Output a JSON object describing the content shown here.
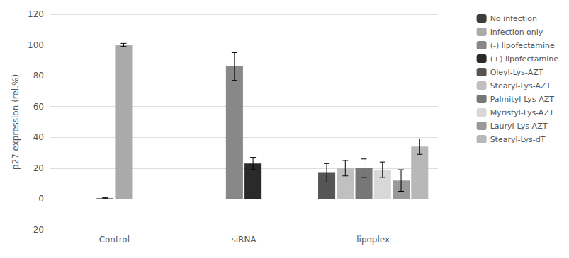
{
  "chart_data": {
    "type": "bar",
    "ylabel": "p27 expression (rel.%)",
    "categories": [
      "Control",
      "siRNA",
      "lipoplex"
    ],
    "series": [
      {
        "name": "No infection",
        "color": "#3c3c3c",
        "values": [
          0.5,
          null,
          null
        ],
        "errors": [
          0.3,
          null,
          null
        ]
      },
      {
        "name": "Infection only",
        "color": "#aaaaaa",
        "values": [
          100,
          null,
          null
        ],
        "errors": [
          1.0,
          null,
          null
        ]
      },
      {
        "name": "(-) lipofectamine",
        "color": "#888888",
        "values": [
          null,
          86,
          null
        ],
        "errors": [
          null,
          9,
          null
        ]
      },
      {
        "name": "(+) lipofectamine",
        "color": "#2a2a2a",
        "values": [
          null,
          23,
          null
        ],
        "errors": [
          null,
          4,
          null
        ]
      },
      {
        "name": "Oleyl-Lys-AZT",
        "color": "#555555",
        "values": [
          null,
          null,
          17
        ],
        "errors": [
          null,
          null,
          6
        ]
      },
      {
        "name": "Stearyl-Lys-AZT",
        "color": "#c0c0c0",
        "values": [
          null,
          null,
          20
        ],
        "errors": [
          null,
          null,
          5
        ]
      },
      {
        "name": "Palmityl-Lys-AZT",
        "color": "#777777",
        "values": [
          null,
          null,
          20
        ],
        "errors": [
          null,
          null,
          6
        ]
      },
      {
        "name": "Myristyl-Lys-AZT",
        "color": "#d8d8d8",
        "values": [
          null,
          null,
          19
        ],
        "errors": [
          null,
          null,
          5
        ]
      },
      {
        "name": "Lauryl-Lys-AZT",
        "color": "#999999",
        "values": [
          null,
          null,
          12
        ],
        "errors": [
          null,
          null,
          7
        ]
      },
      {
        "name": "Stearyl-Lys-dT",
        "color": "#b8b8b8",
        "values": [
          null,
          null,
          34
        ],
        "errors": [
          null,
          null,
          5
        ]
      }
    ],
    "ylim": [
      -20,
      120
    ],
    "yticks": [
      -20,
      0,
      20,
      40,
      60,
      80,
      100,
      120
    ],
    "grid": true,
    "legend": "right"
  }
}
